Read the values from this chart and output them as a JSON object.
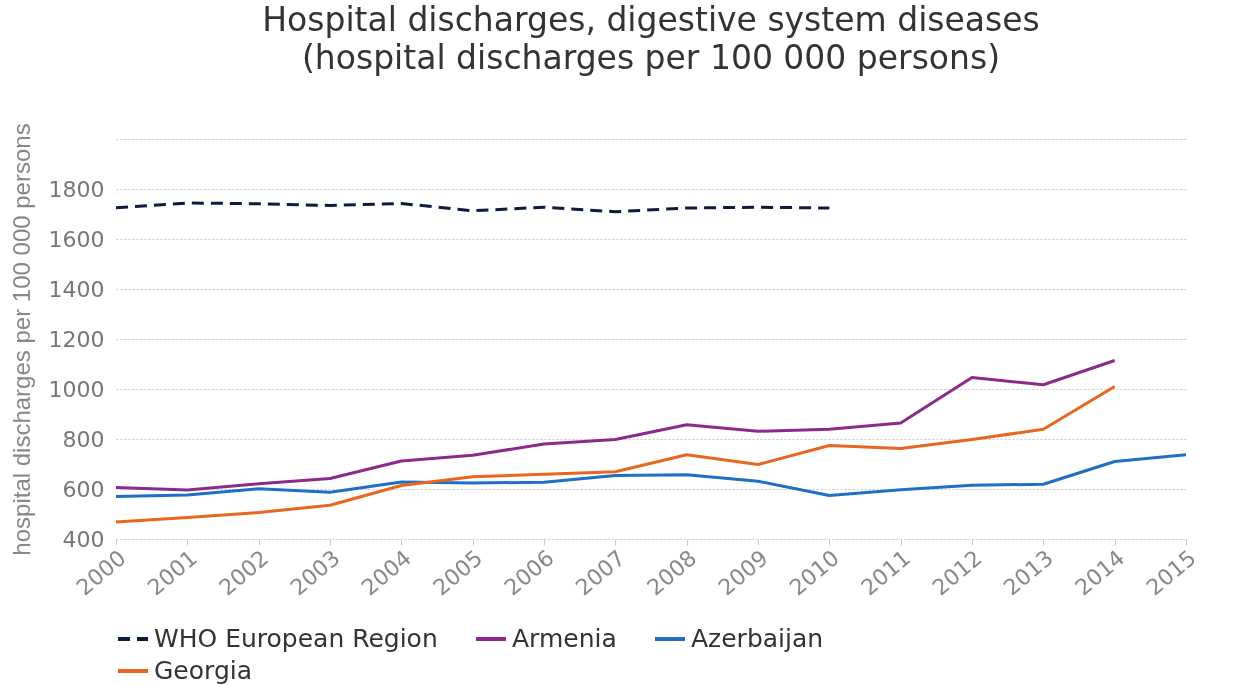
{
  "chart_data": {
    "type": "line",
    "title": "Hospital discharges, digestive system diseases\n(hospital discharges per 100 000 persons)",
    "ylabel": "hospital discharges per 100 000 persons",
    "x": [
      2000,
      2001,
      2002,
      2003,
      2004,
      2005,
      2006,
      2007,
      2008,
      2009,
      2010,
      2011,
      2012,
      2013,
      2014,
      2015
    ],
    "xlim": [
      2000,
      2015
    ],
    "xticks": [
      2000,
      2001,
      2002,
      2003,
      2004,
      2005,
      2006,
      2007,
      2008,
      2009,
      2010,
      2011,
      2012,
      2013,
      2014,
      2015
    ],
    "ylim": [
      400,
      2000
    ],
    "yticks": [
      400,
      600,
      800,
      1000,
      1200,
      1400,
      1600,
      1800,
      {
        "value": 2000,
        "label": null
      }
    ],
    "grid": "y",
    "legend": "bottom",
    "series": [
      {
        "name": "WHO European Region",
        "color": "#0d1b3e",
        "line_style": "dashed",
        "values": [
          1725,
          1744,
          1741,
          1734,
          1742,
          1713,
          1727,
          1709,
          1724,
          1727,
          1724,
          null,
          null,
          null,
          null,
          null
        ]
      },
      {
        "name": "Armenia",
        "color": "#8b2a8b",
        "line_style": "solid",
        "values": [
          606,
          596,
          621,
          642,
          712,
          735,
          780,
          798,
          857,
          831,
          839,
          864,
          1046,
          1017,
          1114,
          null
        ]
      },
      {
        "name": "Azerbaijan",
        "color": "#1f6fc5",
        "line_style": "solid",
        "values": [
          570,
          576,
          601,
          587,
          628,
          624,
          627,
          654,
          657,
          631,
          574,
          597,
          615,
          619,
          710,
          737
        ]
      },
      {
        "name": "Georgia",
        "color": "#e8661e",
        "line_style": "solid",
        "values": [
          468,
          486,
          506,
          535,
          614,
          649,
          659,
          669,
          737,
          698,
          774,
          762,
          798,
          839,
          1010,
          null
        ]
      }
    ]
  }
}
